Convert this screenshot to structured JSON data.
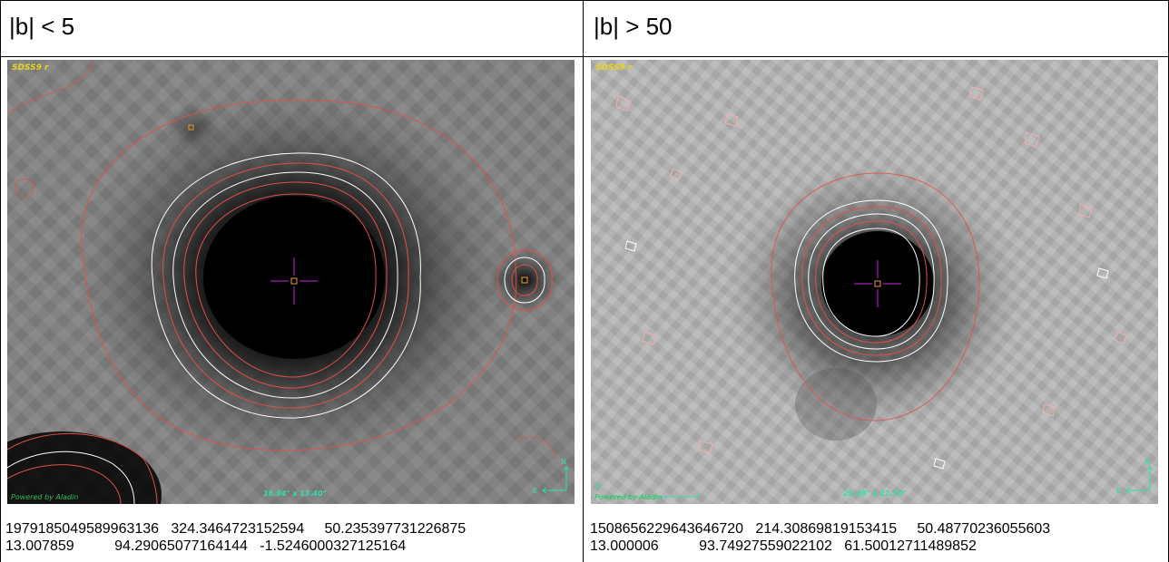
{
  "panels": [
    {
      "title": "|b| < 5",
      "survey": "SDSS9 r",
      "fov": "16.94\" x 13.40\"",
      "powered": "Powered by Aladin",
      "compass_n": "N",
      "compass_e": "E",
      "line1": "1979185049589963136   324.3464723152594     50.235397731226875",
      "line2": "13.007859          94.29065077164144   -1.5246000327125164"
    },
    {
      "title": "|b| > 50",
      "survey": "SDSS9 r",
      "fov": "29.28\" x 22.70\"",
      "powered": "Powered by Aladin",
      "scale": "5\"",
      "compass_n": "N",
      "compass_e": "E",
      "line1": "1508656229643646720   214.30869819153415     50.48770236055603",
      "line2": "13.000006          93.74927559022102   61.50012711489852"
    }
  ],
  "colors": {
    "contour_red": "#e0504a",
    "contour_white": "#ffffff",
    "crosshair": "#a020b0",
    "marker": "#e8a030",
    "label_yellow": "#e8d51a",
    "label_cyan": "#2fe0b0"
  }
}
